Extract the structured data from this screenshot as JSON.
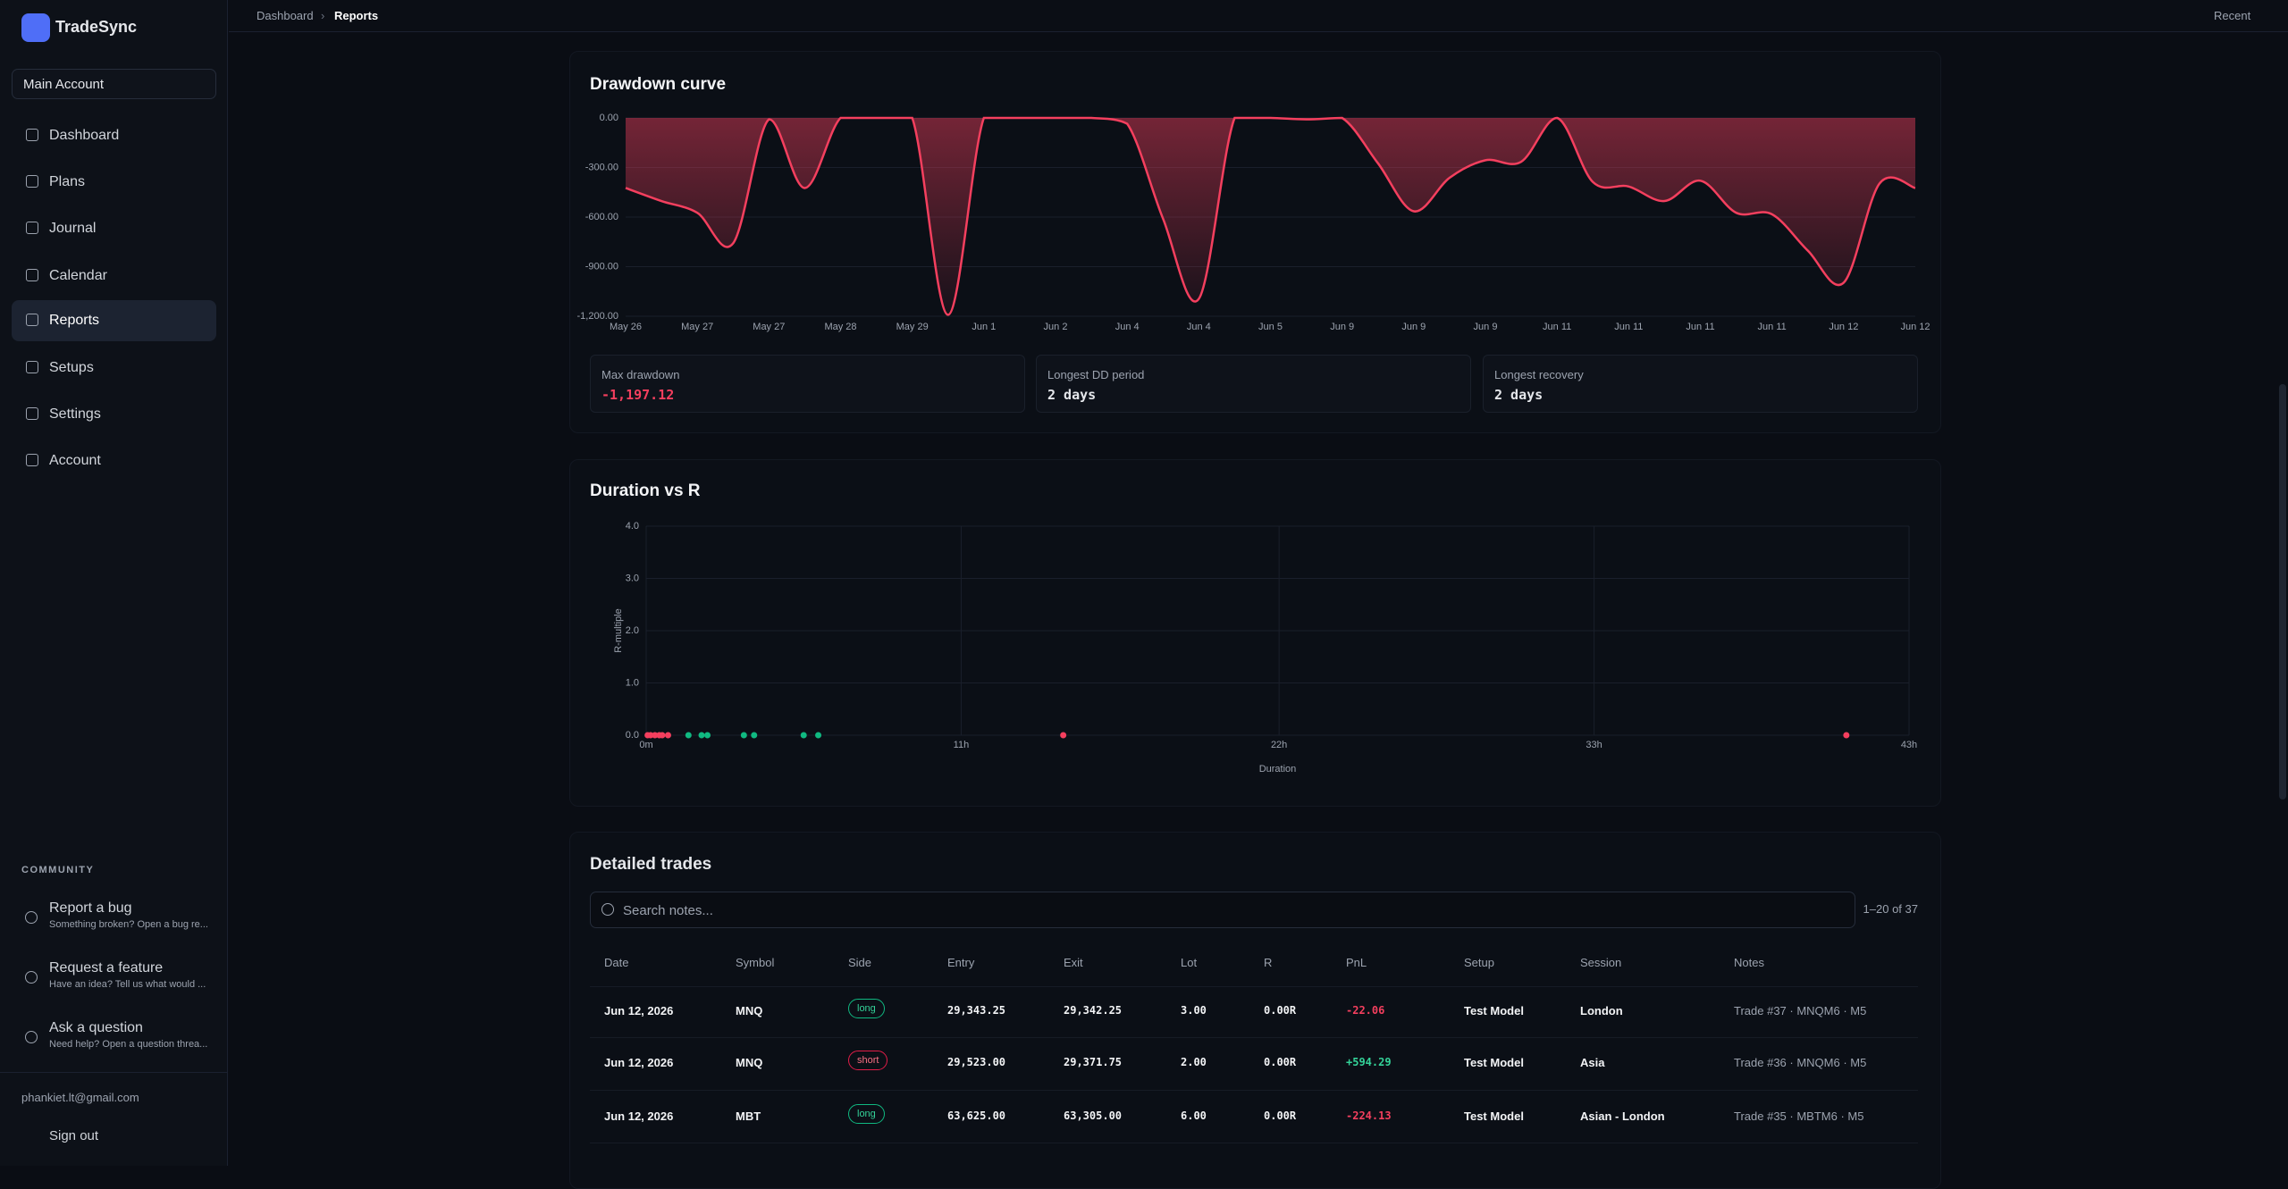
{
  "sidebar": {
    "brand": "TradeSync",
    "account": "Main Account",
    "nav": [
      "Dashboard",
      "Plans",
      "Journal",
      "Calendar",
      "Reports",
      "Setups",
      "Settings",
      "Account"
    ],
    "community": {
      "title": "COMMUNITY",
      "links": [
        {
          "title": "Report a bug",
          "description": "Something broken? Open a bug re..."
        },
        {
          "title": "Request a feature",
          "description": "Have an idea? Tell us what would ..."
        },
        {
          "title": "Ask a question",
          "description": "Need help? Open a question threa..."
        }
      ]
    },
    "email": "phankiet.lt@gmail.com",
    "sign_out": "Sign out"
  },
  "topbar": {
    "breadcrumb": [
      "Dashboard",
      "Reports"
    ],
    "recent": "Recent"
  },
  "chart_data": [
    {
      "type": "area",
      "title": "Drawdown curve",
      "color": "#f43f5e",
      "grid": true,
      "categories": [
        "May 26",
        null,
        "May 27",
        null,
        "May 27",
        null,
        "May 28",
        null,
        "May 29",
        null,
        "Jun 1",
        null,
        "Jun 2",
        null,
        "Jun 4",
        null,
        "Jun 4",
        null,
        "Jun 5",
        null,
        "Jun 9",
        null,
        "Jun 9",
        null,
        "Jun 9",
        null,
        "Jun 11",
        null,
        "Jun 11",
        null,
        "Jun 11",
        null,
        "Jun 11",
        null,
        "Jun 12",
        null,
        "Jun 12"
      ],
      "values": [
        -424,
        -503,
        -574,
        -759,
        -9,
        -424,
        0,
        0,
        0,
        -1191,
        0,
        0,
        0,
        0,
        -35,
        -609,
        -1095,
        0,
        0,
        -9,
        0,
        -274,
        -565,
        -362,
        -256,
        -265,
        0,
        -388,
        -415,
        -503,
        -380,
        -574,
        -583,
        -803,
        -997,
        -397,
        -424
      ],
      "ylim": [
        -1200,
        0
      ],
      "yticks": [
        {
          "value": 0,
          "label": "0.00"
        },
        {
          "value": -300,
          "label": "-300.00"
        },
        {
          "value": -600,
          "label": "-600.00"
        },
        {
          "value": -900,
          "label": "-900.00"
        },
        {
          "value": -1200,
          "label": "-1,200.00"
        }
      ]
    },
    {
      "type": "scatter",
      "title": "Duration vs R",
      "xlabel": "Duration",
      "ylabel": "R-multiple",
      "grid": true,
      "xlim": [
        0,
        43.3
      ],
      "ylim": [
        0,
        4
      ],
      "xticks": [
        {
          "value": 0,
          "label": "0m"
        },
        {
          "value": 10.8,
          "label": "11h"
        },
        {
          "value": 21.7,
          "label": "22h"
        },
        {
          "value": 32.5,
          "label": "33h"
        },
        {
          "value": 43.3,
          "label": "43h"
        }
      ],
      "yticks": [
        {
          "value": 0,
          "label": "0.0"
        },
        {
          "value": 1,
          "label": "1.0"
        },
        {
          "value": 2,
          "label": "2.0"
        },
        {
          "value": 3,
          "label": "3.0"
        },
        {
          "value": 4,
          "label": "4.0"
        }
      ],
      "series": [
        {
          "color": "#f43f5e",
          "x": [
            0.05,
            0.15,
            0.3,
            0.45,
            0.55,
            0.75,
            14.3,
            41.15
          ],
          "values": [
            0,
            0,
            0,
            0,
            0,
            0,
            0,
            0
          ]
        },
        {
          "color": "#10b981",
          "x": [
            1.45,
            1.9,
            2.1,
            3.35,
            3.7,
            5.4,
            5.9
          ],
          "values": [
            0,
            0,
            0,
            0,
            0,
            0,
            0
          ]
        }
      ]
    }
  ],
  "stats": [
    {
      "label": "Max drawdown",
      "value": "-1,197.12"
    },
    {
      "label": "Longest DD period",
      "value": "2 days"
    },
    {
      "label": "Longest recovery",
      "value": "2 days"
    }
  ],
  "trades": {
    "title": "Detailed trades",
    "search_placeholder": "Search notes...",
    "pagination": "1–20 of 37",
    "columns": [
      "Date",
      "Symbol",
      "Side",
      "Entry",
      "Exit",
      "Lot",
      "R",
      "PnL",
      "Setup",
      "Session",
      "Notes"
    ],
    "rows": [
      [
        "Jun 12, 2026",
        "MNQ",
        "long",
        "29,343.25",
        "29,342.25",
        "3.00",
        "0.00R",
        "-22.06",
        "Test Model",
        "London",
        "Trade #37 · MNQM6 · M5"
      ],
      [
        "Jun 12, 2026",
        "MNQ",
        "short",
        "29,523.00",
        "29,371.75",
        "2.00",
        "0.00R",
        "+594.29",
        "Test Model",
        "Asia",
        "Trade #36 · MNQM6 · M5"
      ],
      [
        "Jun 12, 2026",
        "MBT",
        "long",
        "63,625.00",
        "63,305.00",
        "6.00",
        "0.00R",
        "-224.13",
        "Test Model",
        "Asian - London",
        "Trade #35 · MBTM6 · M5"
      ]
    ]
  }
}
